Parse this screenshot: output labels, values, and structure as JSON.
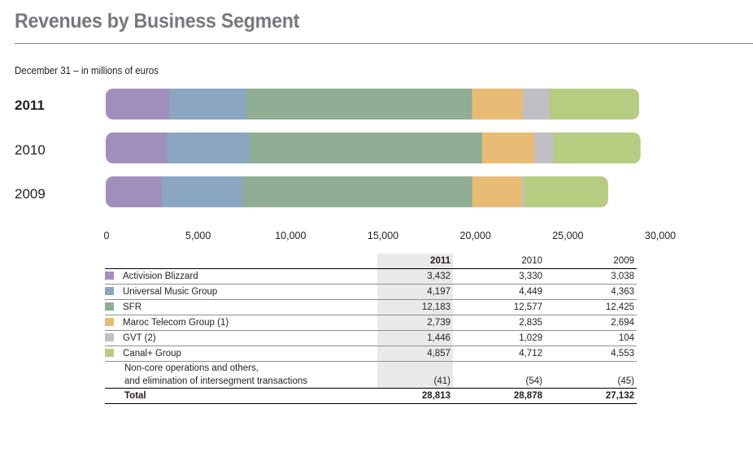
{
  "title": "Revenues by Business Segment",
  "subtitle": "December 31 – in millions of euros",
  "chart_data": {
    "type": "bar",
    "orientation": "horizontal",
    "stacked": true,
    "categories": [
      "2011",
      "2010",
      "2009"
    ],
    "bold_category": "2011",
    "xlim": [
      0,
      30000
    ],
    "xticks": [
      "0",
      "5,000",
      "10,000",
      "15,000",
      "20,000",
      "25,000",
      "30,000"
    ],
    "series": [
      {
        "name": "Activision Blizzard",
        "color": "#a08fbd",
        "values": [
          3432,
          3330,
          3038
        ]
      },
      {
        "name": "Universal Music Group",
        "color": "#8aa6c1",
        "values": [
          4197,
          4449,
          4363
        ]
      },
      {
        "name": "SFR",
        "color": "#8fae93",
        "values": [
          12183,
          12577,
          12425
        ]
      },
      {
        "name": "Maroc Telecom Group (1)",
        "color": "#e8bc74",
        "values": [
          2739,
          2835,
          2694
        ]
      },
      {
        "name": "GVT (2)",
        "color": "#c0bfc3",
        "values": [
          1446,
          1029,
          104
        ]
      },
      {
        "name": "Canal+ Group",
        "color": "#b6cc80",
        "values": [
          4857,
          4712,
          4553
        ]
      }
    ]
  },
  "table": {
    "headers": [
      "2011",
      "2010",
      "2009"
    ],
    "rows": [
      {
        "name": "Activision Blizzard",
        "color": "#a08fbd",
        "values": [
          "3,432",
          "3,330",
          "3,038"
        ]
      },
      {
        "name": "Universal Music Group",
        "color": "#8aa6c1",
        "values": [
          "4,197",
          "4,449",
          "4,363"
        ]
      },
      {
        "name": "SFR",
        "color": "#8fae93",
        "values": [
          "12,183",
          "12,577",
          "12,425"
        ]
      },
      {
        "name": "Maroc Telecom Group (1)",
        "color": "#e8bc74",
        "values": [
          "2,739",
          "2,835",
          "2,694"
        ]
      },
      {
        "name": "GVT (2)",
        "color": "#c0bfc3",
        "values": [
          "1,446",
          "1,029",
          "104"
        ]
      },
      {
        "name": "Canal+ Group",
        "color": "#b6cc80",
        "values": [
          "4,857",
          "4,712",
          "4,553"
        ]
      }
    ],
    "other": {
      "name_line1": "Non-core operations and others,",
      "name_line2": "and elimination of intersegment transactions",
      "values": [
        "(41)",
        "(54)",
        "(45)"
      ]
    },
    "total": {
      "name": "Total",
      "values": [
        "28,813",
        "28,878",
        "27,132"
      ]
    }
  }
}
